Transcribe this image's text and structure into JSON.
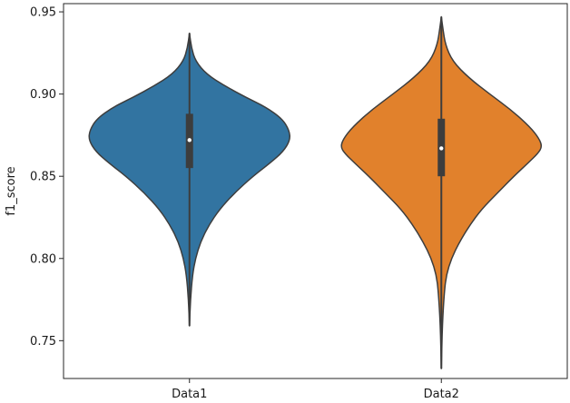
{
  "chart_data": {
    "type": "violin",
    "title": "",
    "xlabel": "",
    "ylabel": "f1_score",
    "ylim": [
      0.727,
      0.955
    ],
    "yticks": [
      "0.75",
      "0.80",
      "0.85",
      "0.90",
      "0.95"
    ],
    "grid": false,
    "categories": [
      "Data1",
      "Data2"
    ],
    "series": [
      {
        "category": "Data1",
        "color": "#3274a1",
        "min": 0.759,
        "q1": 0.855,
        "median": 0.872,
        "q3": 0.888,
        "max": 0.937,
        "density": [
          [
            0.759,
            0.0
          ],
          [
            0.775,
            0.01
          ],
          [
            0.79,
            0.03
          ],
          [
            0.8,
            0.06
          ],
          [
            0.81,
            0.11
          ],
          [
            0.82,
            0.19
          ],
          [
            0.83,
            0.3
          ],
          [
            0.84,
            0.45
          ],
          [
            0.85,
            0.63
          ],
          [
            0.858,
            0.8
          ],
          [
            0.865,
            0.93
          ],
          [
            0.872,
            1.0
          ],
          [
            0.878,
            0.99
          ],
          [
            0.885,
            0.92
          ],
          [
            0.892,
            0.76
          ],
          [
            0.898,
            0.56
          ],
          [
            0.905,
            0.35
          ],
          [
            0.912,
            0.17
          ],
          [
            0.92,
            0.06
          ],
          [
            0.928,
            0.02
          ],
          [
            0.937,
            0.0
          ]
        ]
      },
      {
        "category": "Data2",
        "color": "#e1812c",
        "min": 0.733,
        "q1": 0.85,
        "median": 0.867,
        "q3": 0.885,
        "max": 0.947,
        "density": [
          [
            0.733,
            0.0
          ],
          [
            0.76,
            0.01
          ],
          [
            0.78,
            0.03
          ],
          [
            0.79,
            0.05
          ],
          [
            0.8,
            0.1
          ],
          [
            0.81,
            0.18
          ],
          [
            0.82,
            0.28
          ],
          [
            0.83,
            0.4
          ],
          [
            0.84,
            0.56
          ],
          [
            0.85,
            0.72
          ],
          [
            0.858,
            0.86
          ],
          [
            0.864,
            0.96
          ],
          [
            0.868,
            1.0
          ],
          [
            0.873,
            0.97
          ],
          [
            0.88,
            0.88
          ],
          [
            0.89,
            0.7
          ],
          [
            0.9,
            0.48
          ],
          [
            0.91,
            0.27
          ],
          [
            0.92,
            0.11
          ],
          [
            0.93,
            0.04
          ],
          [
            0.94,
            0.015
          ],
          [
            0.947,
            0.0
          ]
        ]
      }
    ]
  }
}
